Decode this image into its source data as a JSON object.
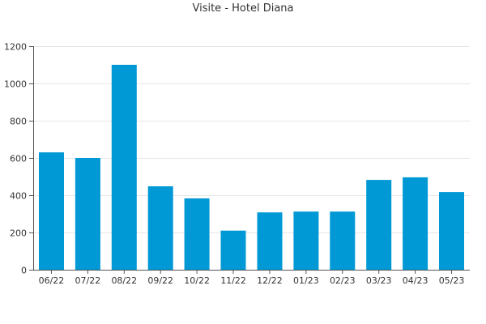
{
  "chart_data": {
    "type": "bar",
    "title": "Visite - Hotel Diana",
    "categories": [
      "06/22",
      "07/22",
      "08/22",
      "09/22",
      "10/22",
      "11/22",
      "12/22",
      "01/23",
      "02/23",
      "03/23",
      "04/23",
      "05/23"
    ],
    "values": [
      630,
      600,
      1100,
      448,
      383,
      210,
      308,
      312,
      312,
      482,
      496,
      417
    ],
    "ylim": [
      0,
      1200
    ],
    "yticks": [
      0,
      200,
      400,
      600,
      800,
      1000,
      1200
    ],
    "grid": true,
    "colors": {
      "bar": "#0099d6"
    }
  }
}
